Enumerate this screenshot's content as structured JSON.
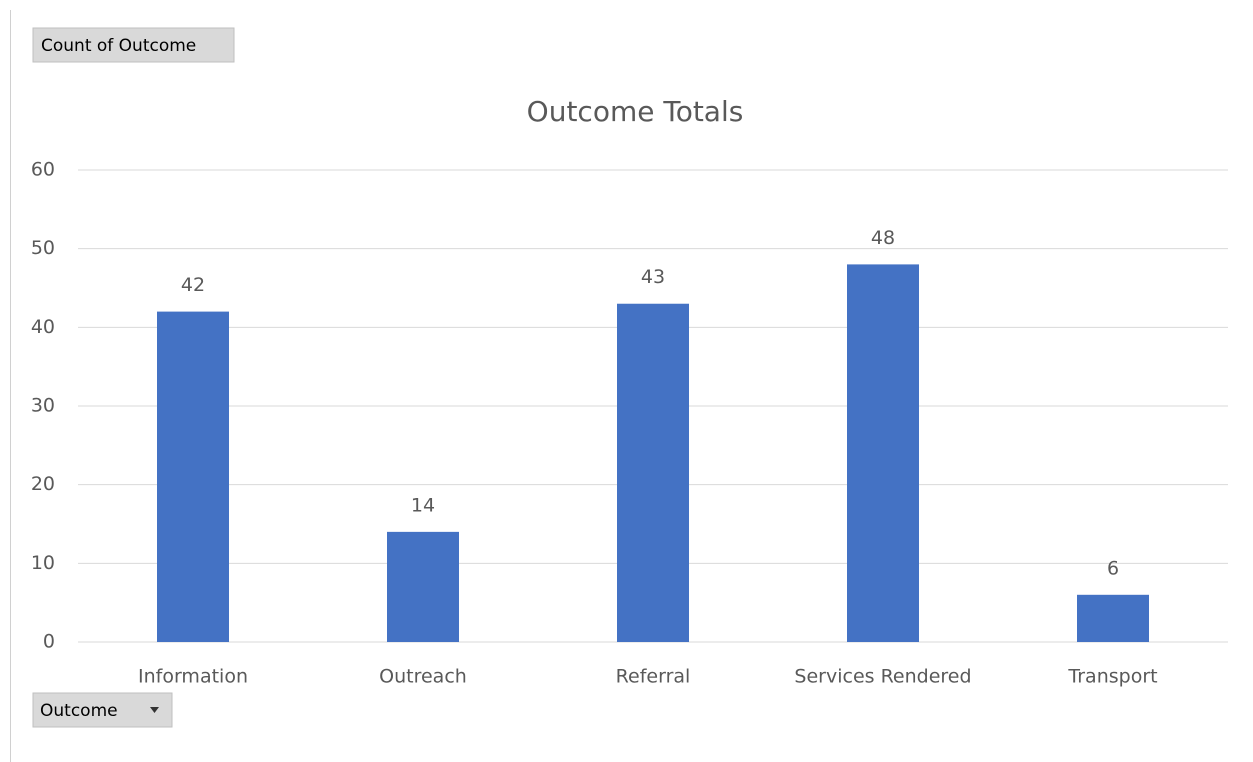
{
  "field_buttons": {
    "value_field": "Count of Outcome",
    "axis_field": "Outcome"
  },
  "chart_data": {
    "type": "bar",
    "title": "Outcome Totals",
    "categories": [
      "Information",
      "Outreach",
      "Referral",
      "Services Rendered",
      "Transport"
    ],
    "values": [
      42,
      14,
      43,
      48,
      6
    ],
    "color": "#4472c4",
    "ylim": [
      0,
      60
    ],
    "yticks": [
      0,
      10,
      20,
      30,
      40,
      50,
      60
    ],
    "grid": true,
    "data_labels": true
  }
}
